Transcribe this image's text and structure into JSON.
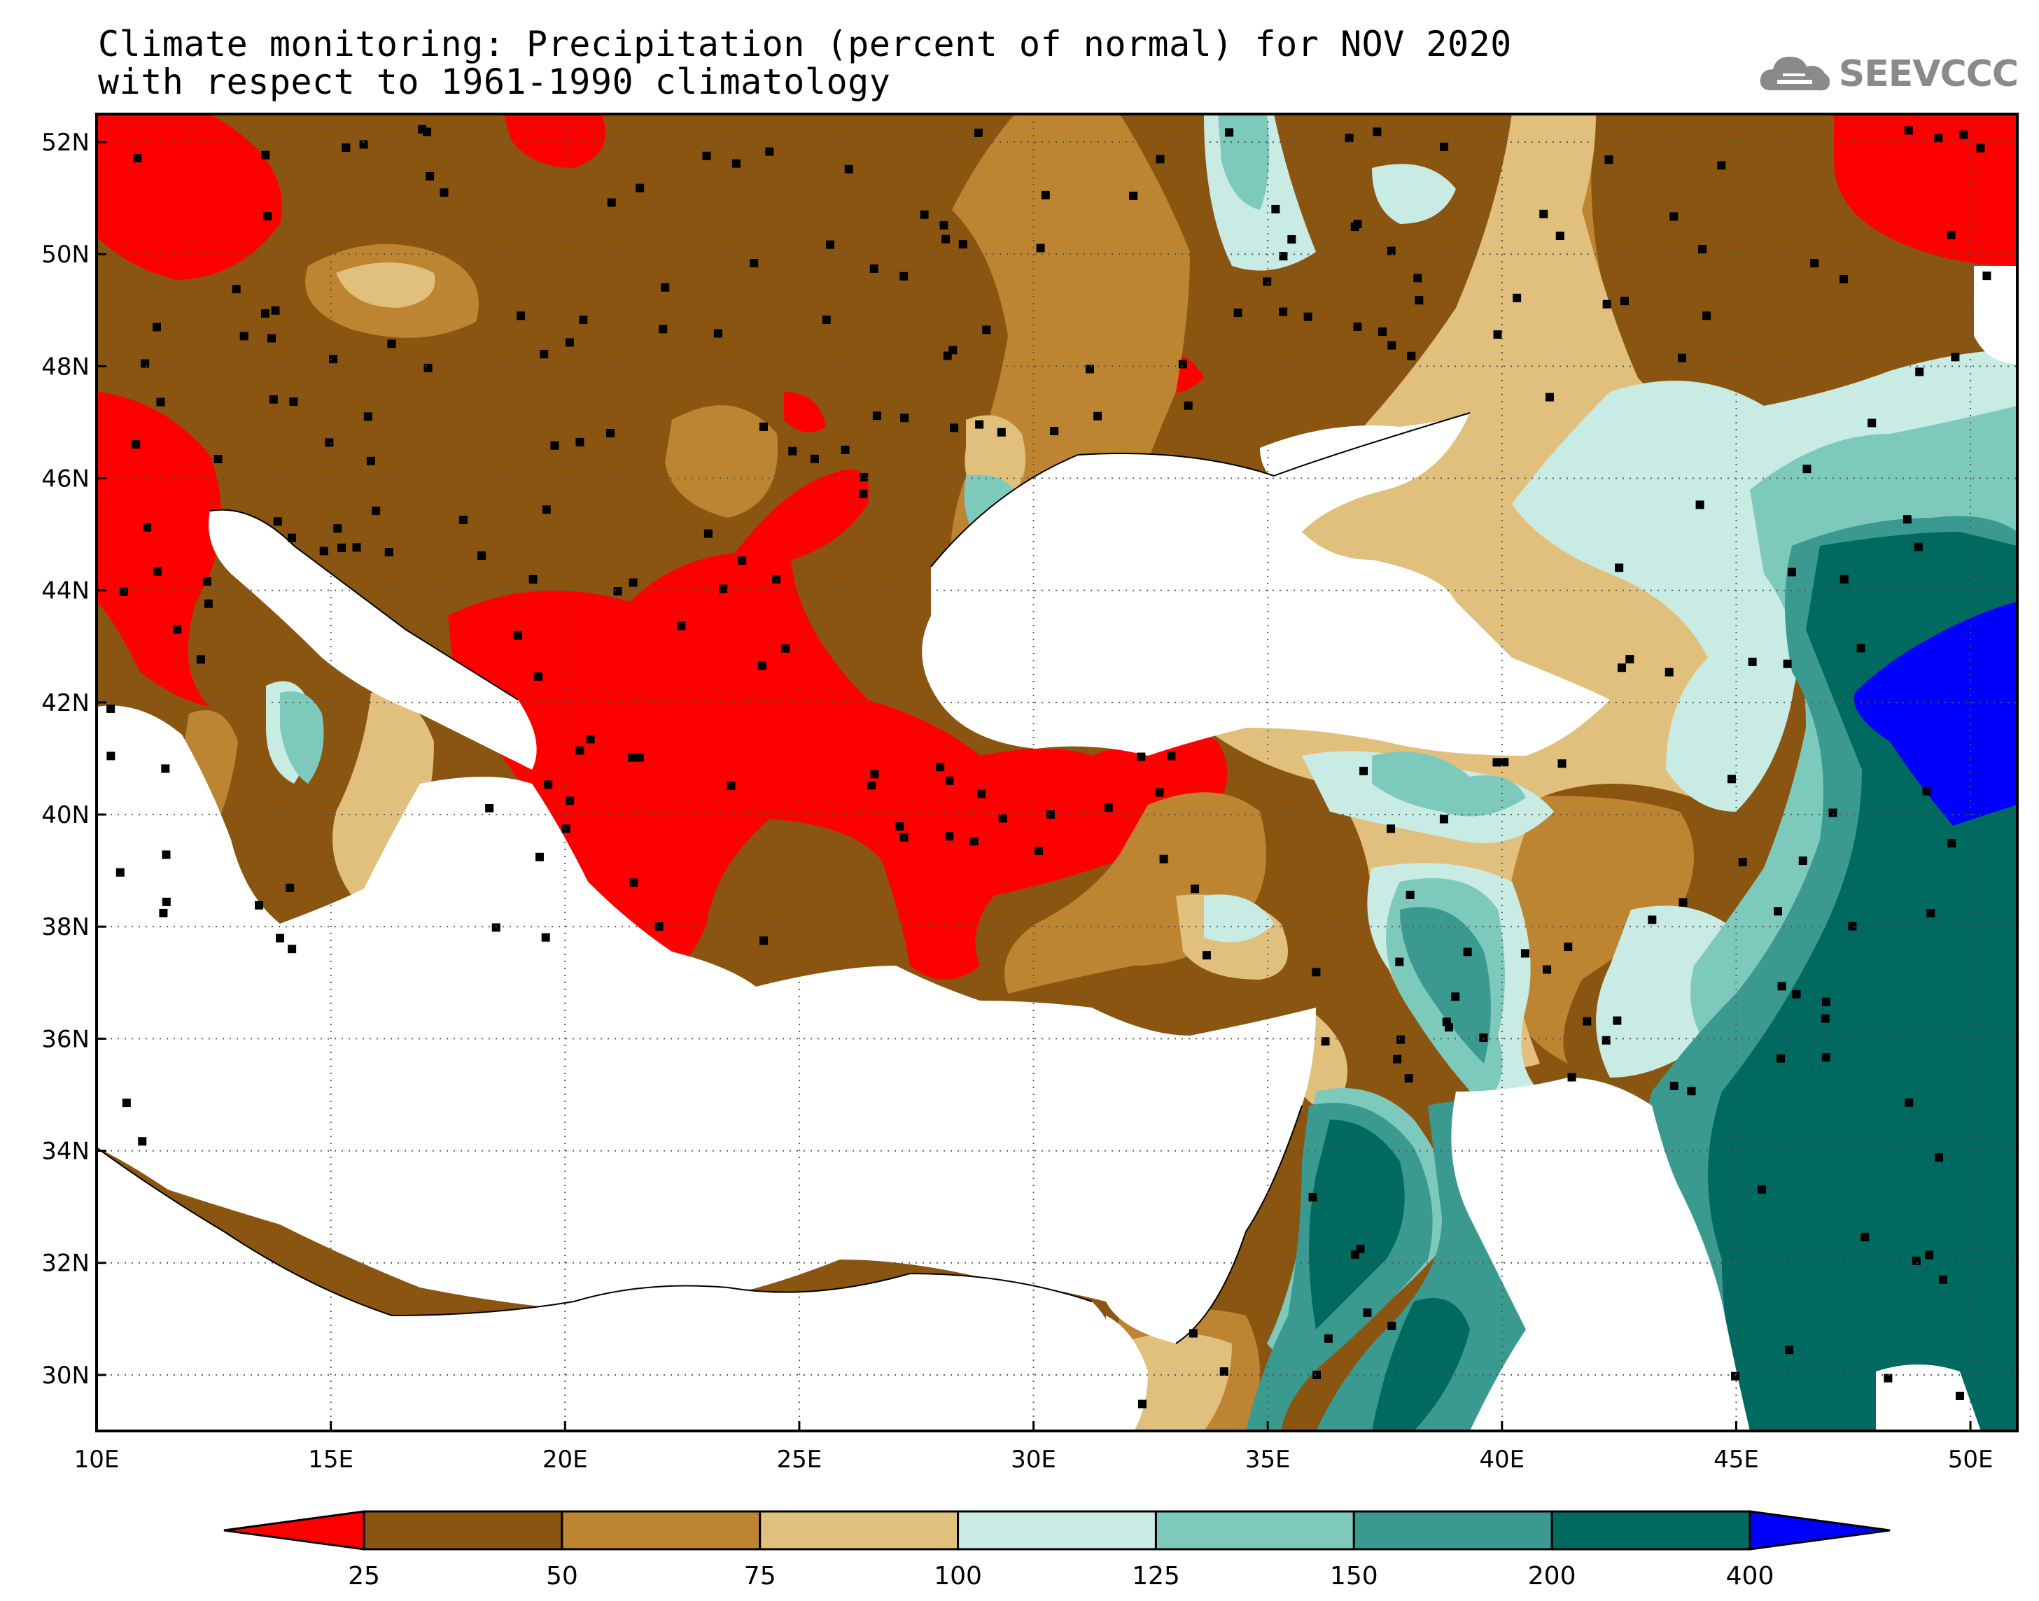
{
  "title": {
    "line1": "Climate monitoring: Precipitation (percent of normal) for NOV 2020",
    "line2": "with respect to 1961-1990 climatology"
  },
  "logo": {
    "text": "SEEVCCC",
    "icon": "cloud-icon"
  },
  "map": {
    "lon_range": [
      10,
      51
    ],
    "lat_range": [
      29,
      52.5
    ],
    "lon_ticks": [
      "10E",
      "15E",
      "20E",
      "25E",
      "30E",
      "35E",
      "40E",
      "45E",
      "50E"
    ],
    "lat_ticks": [
      "30N",
      "32N",
      "34N",
      "36N",
      "38N",
      "40N",
      "42N",
      "44N",
      "46N",
      "48N",
      "50N",
      "52N"
    ],
    "grid": "dotted"
  },
  "legend": {
    "labels": [
      "25",
      "50",
      "75",
      "100",
      "125",
      "150",
      "200",
      "400"
    ],
    "colors": [
      "#ff0000",
      "#8a5510",
      "#bd8431",
      "#e0c07c",
      "#c8ebe3",
      "#7dcabd",
      "#3a9a90",
      "#006a60",
      "#0000ff"
    ]
  }
}
